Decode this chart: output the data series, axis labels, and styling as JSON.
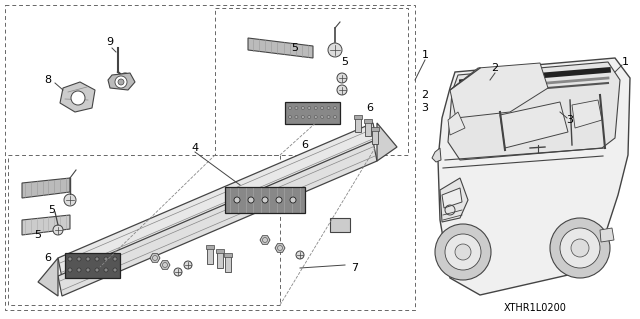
{
  "bg_color": "#ffffff",
  "fig_width": 6.4,
  "fig_height": 3.19,
  "dpi": 100,
  "watermark": "XTHR1L0200",
  "line_color": "#444444",
  "light_gray": "#cccccc",
  "mid_gray": "#888888",
  "dark_gray": "#555555",
  "black": "#222222"
}
